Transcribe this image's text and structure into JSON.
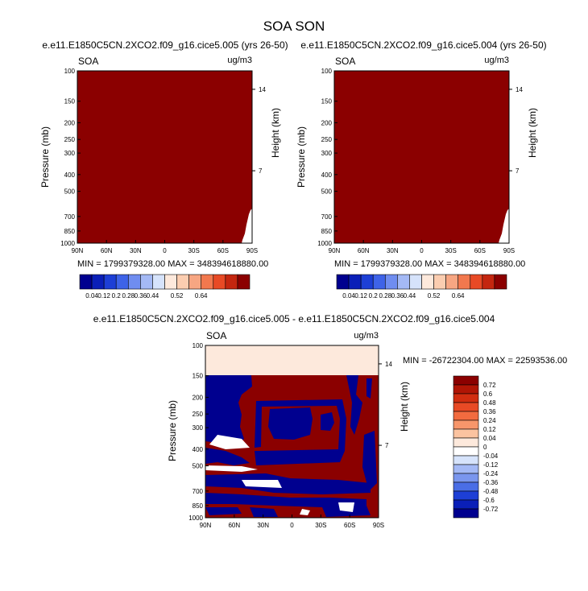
{
  "figure": {
    "title": "SOA SON"
  },
  "colorbar_top": {
    "labels": [
      "0.04",
      "0.12",
      "0.2",
      "0.28",
      "0.36",
      "0.44",
      "0.52",
      "0.64"
    ],
    "colors": [
      "#00008f",
      "#0a1fb8",
      "#1d3fd6",
      "#3e63e8",
      "#6f8df0",
      "#a4b9f5",
      "#d6e3fb",
      "#fde9dc",
      "#fbcdb0",
      "#f7a682",
      "#f2784e",
      "#e84a25",
      "#c4260f",
      "#8b0000"
    ]
  },
  "colorbar_diff": {
    "labels": [
      "0.72",
      "0.6",
      "0.48",
      "0.36",
      "0.24",
      "0.12",
      "0.04",
      "0",
      "-0.04",
      "-0.12",
      "-0.24",
      "-0.36",
      "-0.48",
      "-0.6",
      "-0.72"
    ],
    "colors": [
      "#8b0000",
      "#b01505",
      "#d12d10",
      "#e84a25",
      "#f26b3f",
      "#f7966b",
      "#fbc3a0",
      "#fde9dc",
      "#ffffff",
      "#d6e3fb",
      "#a4b9f5",
      "#7a96ee",
      "#4a6ee6",
      "#1d3fd6",
      "#0a1fb8",
      "#00008f"
    ]
  },
  "chart_data": [
    {
      "type": "heatmap",
      "subtitle": "e.e11.E1850C5CN.2XCO2.f09_g16.cice5.005 (yrs 26-50)",
      "left_label": "SOA",
      "right_label": "ug/m3",
      "ylabel": "Pressure (mb)",
      "ylabel_right": "Height (km)",
      "x_ticks": [
        "90N",
        "60N",
        "30N",
        "0",
        "30S",
        "60S",
        "90S"
      ],
      "y_ticks": [
        "100",
        "150",
        "200",
        "250",
        "300",
        "400",
        "500",
        "700",
        "850",
        "1000"
      ],
      "height_ticks": [
        "14",
        "7"
      ],
      "stats": "MIN = 1799379328.00  MAX = 348394618880.00",
      "field": "all values above top contour level (0.64)"
    },
    {
      "type": "heatmap",
      "subtitle": "e.e11.E1850C5CN.2XCO2.f09_g16.cice5.004 (yrs 26-50)",
      "left_label": "SOA",
      "right_label": "ug/m3",
      "ylabel": "Pressure (mb)",
      "ylabel_right": "Height (km)",
      "x_ticks": [
        "90N",
        "60N",
        "30N",
        "0",
        "30S",
        "60S",
        "90S"
      ],
      "y_ticks": [
        "100",
        "150",
        "200",
        "250",
        "300",
        "400",
        "500",
        "700",
        "850",
        "1000"
      ],
      "height_ticks": [
        "14",
        "7"
      ],
      "stats": "MIN = 1799379328.00  MAX = 348394618880.00",
      "field": "all values above top contour level (0.64)"
    },
    {
      "type": "heatmap",
      "subtitle": "e.e11.E1850C5CN.2XCO2.f09_g16.cice5.005 - e.e11.E1850C5CN.2XCO2.f09_g16.cice5.004",
      "left_label": "SOA",
      "right_label": "ug/m3",
      "ylabel": "Pressure (mb)",
      "ylabel_right": "Height (km)",
      "x_ticks": [
        "90N",
        "60N",
        "30N",
        "0",
        "30S",
        "60S",
        "90S"
      ],
      "y_ticks": [
        "100",
        "150",
        "200",
        "250",
        "300",
        "400",
        "500",
        "700",
        "850",
        "1000"
      ],
      "height_ticks": [
        "14",
        "7"
      ],
      "stats": "MIN = -26722304.00  MAX = 22593536.00",
      "field": "near-zero above 150 mb; mixed large positive/negative differences below"
    }
  ]
}
